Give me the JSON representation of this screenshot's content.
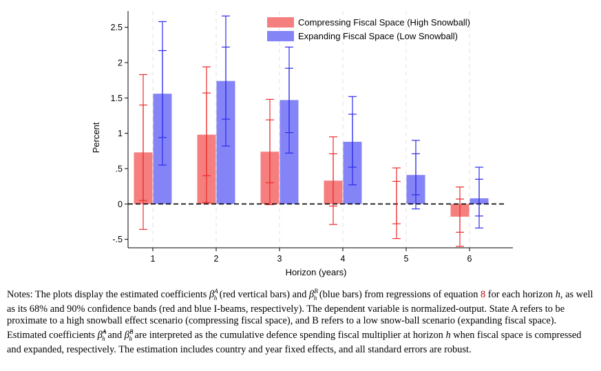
{
  "chart_data": {
    "type": "bar",
    "xlabel": "Horizon (years)",
    "ylabel": "Percent",
    "categories": [
      "1",
      "2",
      "3",
      "4",
      "5",
      "6"
    ],
    "yticks": [
      "-.5",
      "0",
      ".5",
      "1",
      "1.5",
      "2",
      "2.5"
    ],
    "ylim": [
      -0.62,
      2.73
    ],
    "grid": "vertical dashed gridlines",
    "legend_position": "top-right",
    "reference_line": {
      "y": 0,
      "style": "dashed"
    },
    "series": [
      {
        "name": "Compressing Fiscal Space (High Snowball)",
        "color": "#f57f7f",
        "error_color": "#ee2b2b",
        "values": [
          0.73,
          0.98,
          0.74,
          0.33,
          0.0,
          -0.18
        ],
        "ci68": [
          [
            0.05,
            1.4
          ],
          [
            0.4,
            1.57
          ],
          [
            0.3,
            1.19
          ],
          [
            -0.03,
            0.71
          ],
          [
            -0.28,
            0.32
          ],
          [
            -0.4,
            0.07
          ]
        ],
        "ci90": [
          [
            -0.36,
            1.83
          ],
          [
            0.02,
            1.94
          ],
          [
            -0.01,
            1.48
          ],
          [
            -0.29,
            0.95
          ],
          [
            -0.49,
            0.51
          ],
          [
            -0.6,
            0.24
          ]
        ]
      },
      {
        "name": "Expanding Fiscal Space (Low Snowball)",
        "color": "#8484f7",
        "error_color": "#2b2bee",
        "values": [
          1.56,
          1.74,
          1.47,
          0.88,
          0.41,
          0.08
        ],
        "ci68": [
          [
            0.94,
            2.17
          ],
          [
            1.2,
            2.22
          ],
          [
            1.01,
            1.92
          ],
          [
            0.52,
            1.27
          ],
          [
            0.13,
            0.71
          ],
          [
            -0.17,
            0.35
          ]
        ],
        "ci90": [
          [
            0.55,
            2.58
          ],
          [
            0.82,
            2.66
          ],
          [
            0.72,
            2.22
          ],
          [
            0.27,
            1.52
          ],
          [
            -0.07,
            0.9
          ],
          [
            -0.34,
            0.52
          ]
        ]
      }
    ]
  },
  "notes": {
    "s1": "Notes: The plots display the estimated coefficients ",
    "betaA": "β",
    "supA": "A",
    "subA": "h",
    "s2": " (red vertical bars) and ",
    "betaB": "β",
    "supB": "B",
    "subB": "h",
    "s3": " (blue bars) from regressions of equation ",
    "eq_ref": "8",
    "s4": " for each horizon ",
    "h1": "h",
    "s5": ", as well as its 68% and 90% confidence bands (red and blue I-beams, respectively). The dependent variable is normalized-output. State A refers to be proximate to a high snowball effect scenario (compressing fiscal space), and B refers to a low snow-ball scenario (expanding fiscal space). Estimated coefficients ",
    "betaA2": "β̂",
    "supA2": "A",
    "subA2": "h",
    "s6": " and ",
    "betaB2": "β̂",
    "supB2": "B",
    "subB2": "h",
    "s7": " are interpreted as the cumulative defence spending fiscal multiplier at horizon ",
    "h2": "h",
    "s8": " when fiscal space is compressed and expanded, respectively. The estimation includes country and year fixed effects, and all standard errors are robust."
  }
}
